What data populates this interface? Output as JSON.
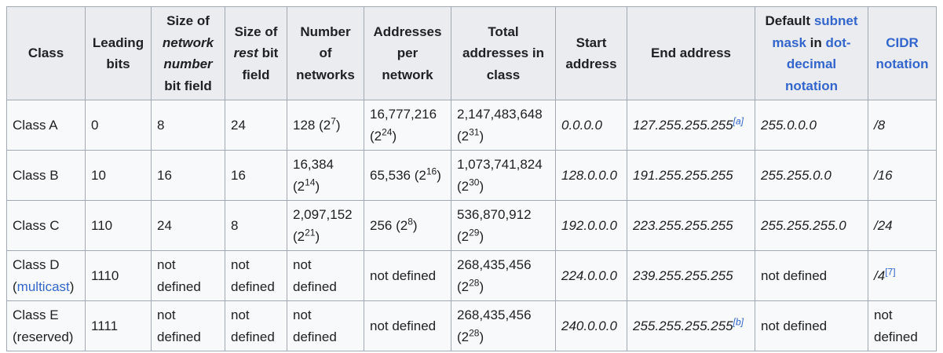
{
  "headers": {
    "class": "Class",
    "leading_bits": "Leading bits",
    "network_field_pre": "Size of",
    "network_field_it": "network number",
    "network_field_post": "bit field",
    "rest_field_pre": "Size of",
    "rest_field_it": "rest",
    "rest_field_post": "bit field",
    "num_networks": "Number of networks",
    "addr_per_network": "Addresses per network",
    "total_addr": "Total addresses in class",
    "start_addr": "Start address",
    "end_addr": "End address",
    "mask_pre": "Default",
    "mask_link1": "subnet mask",
    "mask_mid": "in",
    "mask_link2": "dot-decimal notation",
    "cidr_link": "CIDR notation"
  },
  "rows": [
    {
      "class": "Class A",
      "leading_bits": "0",
      "network_bits": "8",
      "rest_bits": "24",
      "networks": {
        "value": "128 (2",
        "exp": "7",
        "close": ")"
      },
      "per_network": {
        "value": "16,777,216 (2",
        "exp": "24",
        "close": ")"
      },
      "total": {
        "value": "2,147,483,648 (2",
        "exp": "31",
        "close": ")"
      },
      "start": "0.0.0.0",
      "end": "127.255.255.255",
      "end_note": "[a]",
      "mask": "255.0.0.0",
      "cidr": "/8"
    },
    {
      "class": "Class B",
      "leading_bits": "10",
      "network_bits": "16",
      "rest_bits": "16",
      "networks": {
        "value": "16,384 (2",
        "exp": "14",
        "close": ")"
      },
      "per_network": {
        "value": "65,536 (2",
        "exp": "16",
        "close": ")"
      },
      "total": {
        "value": "1,073,741,824 (2",
        "exp": "30",
        "close": ")"
      },
      "start": "128.0.0.0",
      "end": "191.255.255.255",
      "mask": "255.255.0.0",
      "cidr": "/16"
    },
    {
      "class": "Class C",
      "leading_bits": "110",
      "network_bits": "24",
      "rest_bits": "8",
      "networks": {
        "value": "2,097,152 (2",
        "exp": "21",
        "close": ")"
      },
      "per_network": {
        "value": "256 (2",
        "exp": "8",
        "close": ")"
      },
      "total": {
        "value": "536,870,912 (2",
        "exp": "29",
        "close": ")"
      },
      "start": "192.0.0.0",
      "end": "223.255.255.255",
      "mask": "255.255.255.0",
      "cidr": "/24"
    },
    {
      "class": "Class D",
      "class_note_pre": "(",
      "class_note_link": "multicast",
      "class_note_post": ")",
      "leading_bits": "1110",
      "network_bits": "not defined",
      "rest_bits": "not defined",
      "networks_text": "not defined",
      "per_network_text": "not defined",
      "total": {
        "value": "268,435,456 (2",
        "exp": "28",
        "close": ")"
      },
      "start": "224.0.0.0",
      "end": "239.255.255.255",
      "mask": "not defined",
      "cidr": "/4",
      "cidr_note": "[7]"
    },
    {
      "class": "Class E",
      "class_note": "(reserved)",
      "leading_bits": "1111",
      "network_bits": "not defined",
      "rest_bits": "not defined",
      "networks_text": "not defined",
      "per_network_text": "not defined",
      "total": {
        "value": "268,435,456 (2",
        "exp": "28",
        "close": ")"
      },
      "start": "240.0.0.0",
      "end": "255.255.255.255",
      "end_note": "[b]",
      "mask": "not defined",
      "cidr_text": "not defined"
    }
  ]
}
